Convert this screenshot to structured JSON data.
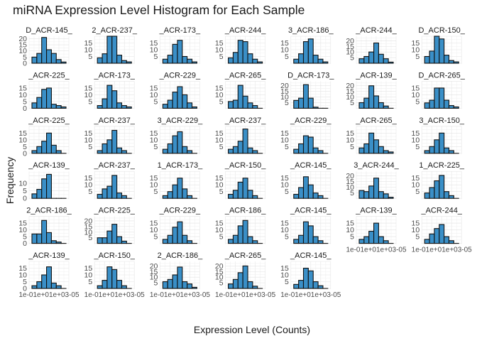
{
  "chart_data": {
    "type": "bar",
    "kind": "faceted histogram",
    "title": "miRNA Expression Level Histogram for Each Sample",
    "xlabel": "Expression Level (Counts)",
    "ylabel": "Frequency",
    "theme": "minimal",
    "grid": true,
    "bar_fill": "#3a8fc7",
    "bar_stroke": "#111111",
    "x_tick_labels": [
      "1e-01",
      "1e+03",
      "1e+05"
    ],
    "x_tick_text": "1e-01e+01e+03-05",
    "facets": [
      {
        "label": "D_ACR-145_",
        "ylim": [
          0,
          22
        ],
        "y_ticks": [
          0,
          5,
          10,
          15,
          20
        ],
        "values": [
          5,
          8,
          21,
          11,
          8,
          3,
          1
        ]
      },
      {
        "label": "2_ACR-237_",
        "ylim": [
          0,
          20
        ],
        "y_ticks": [
          5,
          10,
          15
        ],
        "values": [
          4,
          7,
          20,
          20,
          6,
          2,
          1
        ]
      },
      {
        "label": "_ACR-173_",
        "ylim": [
          0,
          20
        ],
        "y_ticks": [
          5,
          10,
          15
        ],
        "values": [
          3,
          6,
          14,
          17,
          5,
          3,
          1
        ]
      },
      {
        "label": "_ACR-244_",
        "ylim": [
          0,
          20
        ],
        "y_ticks": [
          5,
          10,
          15
        ],
        "values": [
          4,
          8,
          17,
          16,
          7,
          3,
          1
        ]
      },
      {
        "label": "3_ACR-186_",
        "ylim": [
          0,
          20
        ],
        "y_ticks": [
          5,
          10,
          15
        ],
        "values": [
          3,
          7,
          16,
          18,
          6,
          3,
          1
        ]
      },
      {
        "label": "_ACR-244_",
        "ylim": [
          0,
          24
        ],
        "y_ticks": [
          5,
          10,
          15,
          20
        ],
        "values": [
          4,
          6,
          10,
          18,
          8,
          4,
          1
        ]
      },
      {
        "label": "D_ACR-150_",
        "ylim": [
          0,
          20
        ],
        "y_ticks": [
          5,
          10,
          15
        ],
        "values": [
          5,
          9,
          20,
          18,
          6,
          2,
          1
        ]
      },
      {
        "label": "_ACR-225_",
        "ylim": [
          0,
          20
        ],
        "y_ticks": [
          0,
          5,
          10,
          15
        ],
        "values": [
          4,
          8,
          14,
          15,
          3,
          2,
          1
        ]
      },
      {
        "label": "_ACR-173_",
        "ylim": [
          0,
          20
        ],
        "y_ticks": [
          5,
          10,
          15
        ],
        "values": [
          2,
          7,
          17,
          13,
          4,
          2,
          1
        ]
      },
      {
        "label": "_ACR-229_",
        "ylim": [
          0,
          20
        ],
        "y_ticks": [
          5,
          10,
          15
        ],
        "values": [
          3,
          6,
          12,
          16,
          10,
          4,
          1
        ]
      },
      {
        "label": "_ACR-265_",
        "ylim": [
          0,
          20
        ],
        "y_ticks": [
          5,
          10,
          15
        ],
        "values": [
          5,
          6,
          17,
          9,
          4,
          2,
          0
        ]
      },
      {
        "label": "D_ACR-173_",
        "ylim": [
          0,
          24
        ],
        "y_ticks": [
          5,
          10,
          15,
          20
        ],
        "values": [
          7,
          9,
          21,
          9,
          1,
          0,
          0
        ]
      },
      {
        "label": "_ACR-139_",
        "ylim": [
          0,
          24
        ],
        "y_ticks": [
          5,
          10,
          15,
          20
        ],
        "values": [
          5,
          9,
          20,
          11,
          5,
          2,
          0
        ]
      },
      {
        "label": "D_ACR-265_",
        "ylim": [
          0,
          20
        ],
        "y_ticks": [
          5,
          10,
          15
        ],
        "values": [
          4,
          6,
          15,
          15,
          6,
          2,
          1
        ]
      },
      {
        "label": "_ACR-225_",
        "ylim": [
          0,
          20
        ],
        "y_ticks": [
          0,
          5,
          10,
          15
        ],
        "values": [
          2,
          5,
          9,
          15,
          6,
          2,
          0
        ]
      },
      {
        "label": "_ACR-237_",
        "ylim": [
          0,
          20
        ],
        "y_ticks": [
          5,
          10,
          15
        ],
        "values": [
          2,
          7,
          10,
          17,
          4,
          2,
          0
        ]
      },
      {
        "label": "3_ACR-229_",
        "ylim": [
          0,
          20
        ],
        "y_ticks": [
          5,
          10,
          15
        ],
        "values": [
          3,
          7,
          13,
          16,
          5,
          2,
          0
        ]
      },
      {
        "label": "_ACR-237_",
        "ylim": [
          0,
          20
        ],
        "y_ticks": [
          5,
          10,
          15
        ],
        "values": [
          3,
          5,
          9,
          18,
          4,
          2,
          0
        ]
      },
      {
        "label": "_ACR-229_",
        "ylim": [
          0,
          20
        ],
        "y_ticks": [
          5,
          10,
          15
        ],
        "values": [
          3,
          7,
          13,
          12,
          4,
          2,
          0
        ]
      },
      {
        "label": "_ACR-265_",
        "ylim": [
          0,
          20
        ],
        "y_ticks": [
          5,
          10,
          15
        ],
        "values": [
          4,
          7,
          15,
          10,
          5,
          2,
          1
        ]
      },
      {
        "label": "3_ACR-150_",
        "ylim": [
          0,
          20
        ],
        "y_ticks": [
          5,
          10,
          15
        ],
        "values": [
          2,
          5,
          10,
          15,
          4,
          2,
          0
        ]
      },
      {
        "label": "_ACR-139_",
        "ylim": [
          0,
          18
        ],
        "y_ticks": [
          0,
          5,
          10
        ],
        "values": [
          3,
          6,
          13,
          16,
          0,
          0,
          0
        ]
      },
      {
        "label": "_ACR-237_",
        "ylim": [
          0,
          20
        ],
        "y_ticks": [
          5,
          10,
          15
        ],
        "values": [
          3,
          7,
          9,
          17,
          4,
          2,
          0
        ]
      },
      {
        "label": "1_ACR-173_",
        "ylim": [
          0,
          20
        ],
        "y_ticks": [
          5,
          10,
          15
        ],
        "values": [
          2,
          5,
          10,
          15,
          7,
          2,
          0
        ]
      },
      {
        "label": "_ACR-150_",
        "ylim": [
          0,
          20
        ],
        "y_ticks": [
          5,
          10,
          15
        ],
        "values": [
          3,
          6,
          12,
          15,
          6,
          2,
          0
        ]
      },
      {
        "label": "_ACR-145_",
        "ylim": [
          0,
          20
        ],
        "y_ticks": [
          5,
          10,
          15
        ],
        "values": [
          3,
          8,
          16,
          10,
          4,
          2,
          0
        ]
      },
      {
        "label": "3_ACR-244_",
        "ylim": [
          0,
          24
        ],
        "y_ticks": [
          5,
          10,
          15,
          20
        ],
        "values": [
          7,
          6,
          11,
          18,
          6,
          4,
          1
        ]
      },
      {
        "label": "1_ACR-225_",
        "ylim": [
          0,
          20
        ],
        "y_ticks": [
          5,
          10,
          15
        ],
        "values": [
          4,
          8,
          13,
          17,
          5,
          2,
          0
        ]
      },
      {
        "label": "2_ACR-186_",
        "ylim": [
          0,
          20
        ],
        "y_ticks": [
          0,
          5,
          10,
          15
        ],
        "values": [
          7,
          7,
          17,
          8,
          2,
          1,
          0
        ]
      },
      {
        "label": "_ACR-225_",
        "ylim": [
          0,
          24
        ],
        "y_ticks": [
          5,
          10,
          15,
          20
        ],
        "values": [
          5,
          5,
          11,
          17,
          6,
          2,
          0
        ]
      },
      {
        "label": "_ACR-229_",
        "ylim": [
          0,
          20
        ],
        "y_ticks": [
          5,
          10,
          15
        ],
        "values": [
          3,
          6,
          12,
          16,
          6,
          2,
          0
        ]
      },
      {
        "label": "_ACR-186_",
        "ylim": [
          0,
          20
        ],
        "y_ticks": [
          5,
          10,
          15
        ],
        "values": [
          3,
          6,
          13,
          17,
          5,
          2,
          0
        ]
      },
      {
        "label": "_ACR-145_",
        "ylim": [
          0,
          20
        ],
        "y_ticks": [
          5,
          10,
          15
        ],
        "values": [
          3,
          6,
          16,
          13,
          5,
          2,
          0
        ]
      },
      {
        "label": "_ACR-139_",
        "ylim": [
          0,
          20
        ],
        "y_ticks": [
          5,
          10,
          15
        ],
        "values": [
          3,
          5,
          9,
          15,
          5,
          2,
          0
        ]
      },
      {
        "label": "_ACR-244_",
        "ylim": [
          0,
          20
        ],
        "y_ticks": [
          5,
          10,
          15
        ],
        "values": [
          3,
          7,
          11,
          14,
          5,
          2,
          0
        ]
      },
      {
        "label": "_ACR-139_",
        "ylim": [
          0,
          20
        ],
        "y_ticks": [
          0,
          5,
          10,
          15
        ],
        "values": [
          2,
          5,
          10,
          16,
          4,
          2,
          0
        ]
      },
      {
        "label": "_ACR-150_",
        "ylim": [
          0,
          20
        ],
        "y_ticks": [
          5,
          10,
          15
        ],
        "values": [
          2,
          6,
          16,
          14,
          6,
          2,
          0
        ]
      },
      {
        "label": "2_ACR-186_",
        "ylim": [
          0,
          24
        ],
        "y_ticks": [
          5,
          10,
          15,
          20
        ],
        "values": [
          6,
          8,
          12,
          19,
          6,
          4,
          1
        ]
      },
      {
        "label": "_ACR-265_",
        "ylim": [
          0,
          24
        ],
        "y_ticks": [
          5,
          10,
          15,
          20
        ],
        "values": [
          4,
          8,
          14,
          20,
          6,
          2,
          0
        ]
      },
      {
        "label": "_ACR-145_",
        "ylim": [
          0,
          20
        ],
        "y_ticks": [
          5,
          10,
          15
        ],
        "values": [
          3,
          6,
          15,
          13,
          5,
          2,
          0
        ]
      }
    ]
  }
}
